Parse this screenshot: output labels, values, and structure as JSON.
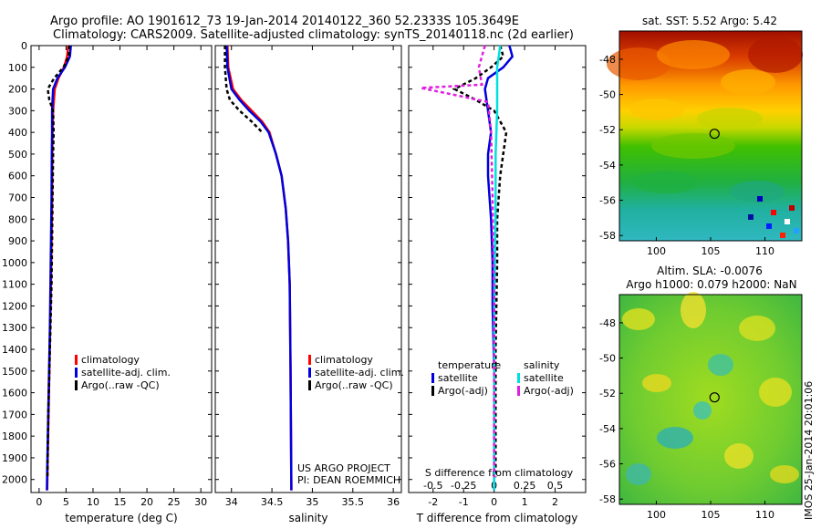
{
  "titles": {
    "line1": "Argo profile: AO 1901612_73 19-Jan-2014 20140122_360 52.2333S 105.3649E",
    "line2": "Climatology: CARS2009. Satellite-adjusted climatology: synTS_20140118.nc (2d earlier)"
  },
  "stamp": "IMOS 25-Jan-2014 20:01:06",
  "colors": {
    "climatology": "#ff0000",
    "satellite": "#0000dd",
    "argo": "#000000",
    "sat_salinity": "#00e0e0",
    "argo_salinity": "#e020e0"
  },
  "chart_data": [
    {
      "type": "line",
      "xlabel": "temperature (deg C)",
      "xlim": [
        -1.5,
        32
      ],
      "xticks": [
        0,
        5,
        10,
        15,
        20,
        25,
        30
      ],
      "ylim": [
        0,
        2060
      ],
      "yticks": [
        0,
        100,
        200,
        300,
        400,
        500,
        600,
        700,
        800,
        900,
        1000,
        1100,
        1200,
        1300,
        1400,
        1500,
        1600,
        1700,
        1800,
        1900,
        2000
      ],
      "legend": {
        "placement": "lower-middle",
        "entries": [
          "climatology",
          "satellite-adj. clim.",
          "Argo(..raw -QC)"
        ]
      },
      "series": [
        {
          "name": "climatology",
          "color": "#ff0000",
          "x": [
            5.4,
            5.2,
            4.6,
            3.6,
            2.9,
            2.6,
            2.5,
            2.45,
            2.4,
            2.3,
            2.2,
            2.05,
            1.9,
            1.75,
            1.6,
            1.5
          ],
          "y": [
            0,
            50,
            100,
            150,
            200,
            300,
            400,
            500,
            700,
            900,
            1100,
            1300,
            1500,
            1700,
            1900,
            2050
          ]
        },
        {
          "name": "satellite-adj. clim.",
          "color": "#0000dd",
          "x": [
            5.9,
            5.7,
            4.8,
            3.4,
            2.6,
            2.4,
            2.4,
            2.35,
            2.3,
            2.2,
            2.1,
            2.0,
            1.85,
            1.7,
            1.55,
            1.45
          ],
          "y": [
            0,
            50,
            100,
            150,
            200,
            300,
            400,
            500,
            700,
            900,
            1100,
            1300,
            1500,
            1700,
            1900,
            2050
          ]
        },
        {
          "name": "Argo(..raw -QC)",
          "color": "#000000",
          "x": [
            5.6,
            5.5,
            4.5,
            2.8,
            1.6,
            1.9,
            2.6,
            2.7,
            2.6,
            2.5,
            2.4,
            2.3,
            2.1,
            1.9,
            1.7,
            1.55
          ],
          "y": [
            0,
            50,
            100,
            150,
            200,
            250,
            300,
            400,
            500,
            700,
            900,
            1100,
            1300,
            1500,
            1700,
            1990
          ]
        }
      ]
    },
    {
      "type": "line",
      "xlabel": "salinity",
      "xlim": [
        33.8,
        36.1
      ],
      "xticks": [
        34,
        34.5,
        35,
        35.5,
        36
      ],
      "ylim": [
        0,
        2060
      ],
      "legend": {
        "placement": "lower-middle",
        "entries": [
          "climatology",
          "satellite-adj. clim.",
          "Argo(..raw -QC)"
        ]
      },
      "annotation": [
        "US ARGO PROJECT",
        "PI: DEAN ROEMMICH"
      ],
      "series": [
        {
          "name": "climatology",
          "color": "#ff0000",
          "x": [
            33.95,
            33.96,
            34.02,
            34.12,
            34.25,
            34.38,
            34.47,
            34.55,
            34.62,
            34.67,
            34.7,
            34.72,
            34.73,
            34.74
          ],
          "y": [
            0,
            100,
            200,
            250,
            300,
            350,
            400,
            500,
            600,
            750,
            900,
            1100,
            1500,
            2050
          ]
        },
        {
          "name": "satellite-adj. clim.",
          "color": "#0000dd",
          "x": [
            33.94,
            33.95,
            34.0,
            34.1,
            34.22,
            34.36,
            34.46,
            34.55,
            34.62,
            34.67,
            34.7,
            34.72,
            34.73,
            34.74
          ],
          "y": [
            0,
            100,
            200,
            250,
            300,
            350,
            400,
            500,
            600,
            750,
            900,
            1100,
            1500,
            2050
          ]
        },
        {
          "name": "Argo(..raw -QC)",
          "color": "#000000",
          "x": [
            33.92,
            33.92,
            33.94,
            33.98,
            34.1,
            34.25,
            34.38
          ],
          "y": [
            0,
            100,
            200,
            250,
            300,
            350,
            400
          ]
        }
      ]
    },
    {
      "type": "line",
      "xlabel": "T difference from climatology",
      "xlabel_top": "S difference from climatology",
      "xlim": [
        -2.8,
        3.0
      ],
      "xticks": [
        -2,
        -1,
        0,
        1,
        2
      ],
      "xticks_top": [
        -0.5,
        -0.25,
        0,
        0.25,
        0.5
      ],
      "ylim": [
        0,
        2060
      ],
      "legend": {
        "placement": "lower-middle",
        "groups": [
          {
            "title": "temperature",
            "entries": [
              "satellite",
              "Argo(-adj)"
            ]
          },
          {
            "title": "salinity",
            "entries": [
              "satellite",
              "Argo(-adj)"
            ]
          }
        ]
      },
      "series": [
        {
          "name": "satellite",
          "group": "temperature",
          "color": "#0000dd",
          "x": [
            0.5,
            0.6,
            0.3,
            -0.2,
            -0.3,
            -0.2,
            -0.1,
            -0.2,
            -0.2,
            -0.1,
            -0.05,
            -0.05,
            0.0,
            0.0,
            0.0
          ],
          "y": [
            0,
            50,
            100,
            150,
            200,
            300,
            400,
            500,
            600,
            800,
            1000,
            1200,
            1500,
            1800,
            2050
          ]
        },
        {
          "name": "Argo(-adj)",
          "group": "temperature",
          "color": "#000000",
          "x": [
            0.2,
            0.3,
            -0.1,
            -0.6,
            -1.3,
            -0.6,
            0.0,
            0.4,
            0.2,
            0.1,
            0.1,
            0.05,
            0.05,
            0.05
          ],
          "y": [
            0,
            50,
            100,
            150,
            200,
            250,
            300,
            400,
            600,
            800,
            1000,
            1400,
            1800,
            1990
          ]
        },
        {
          "name": "satellite",
          "group": "salinity",
          "color": "#00e0e0",
          "x": [
            0.2,
            0.15,
            0.1,
            0.1,
            0.1,
            0.05,
            0.05,
            0.0,
            0.0,
            0.0
          ],
          "y": [
            0,
            50,
            100,
            200,
            300,
            500,
            800,
            1200,
            1600,
            2050
          ]
        },
        {
          "name": "Argo(-adj)",
          "group": "salinity",
          "color": "#e020e0",
          "x": [
            -0.3,
            -0.5,
            -0.4,
            -2.4,
            -0.2,
            -0.1,
            -0.05,
            0.0,
            0.0
          ],
          "y": [
            0,
            100,
            180,
            195,
            260,
            400,
            700,
            1200,
            1990
          ]
        }
      ]
    }
  ],
  "maps": {
    "sst": {
      "title": "sat. SST: 5.52 Argo: 5.42",
      "lat_ticks": [
        -48,
        -50,
        -52,
        -54,
        -56,
        -58
      ],
      "lat_range": [
        -58.3,
        -46.4
      ],
      "lon_ticks": [
        100,
        105,
        110
      ],
      "lon_range": [
        96.6,
        113.4
      ],
      "float": {
        "lon": 105.36,
        "lat": -52.23
      }
    },
    "sla": {
      "title1": "Altim. SLA: -0.0076",
      "title2": "Argo h1000: 0.079 h2000: NaN",
      "lat_ticks": [
        -48,
        -50,
        -52,
        -54,
        -56,
        -58
      ],
      "lat_range": [
        -58.3,
        -46.4
      ],
      "lon_ticks": [
        100,
        105,
        110
      ],
      "lon_range": [
        96.6,
        113.4
      ],
      "float": {
        "lon": 105.36,
        "lat": -52.23
      }
    }
  }
}
